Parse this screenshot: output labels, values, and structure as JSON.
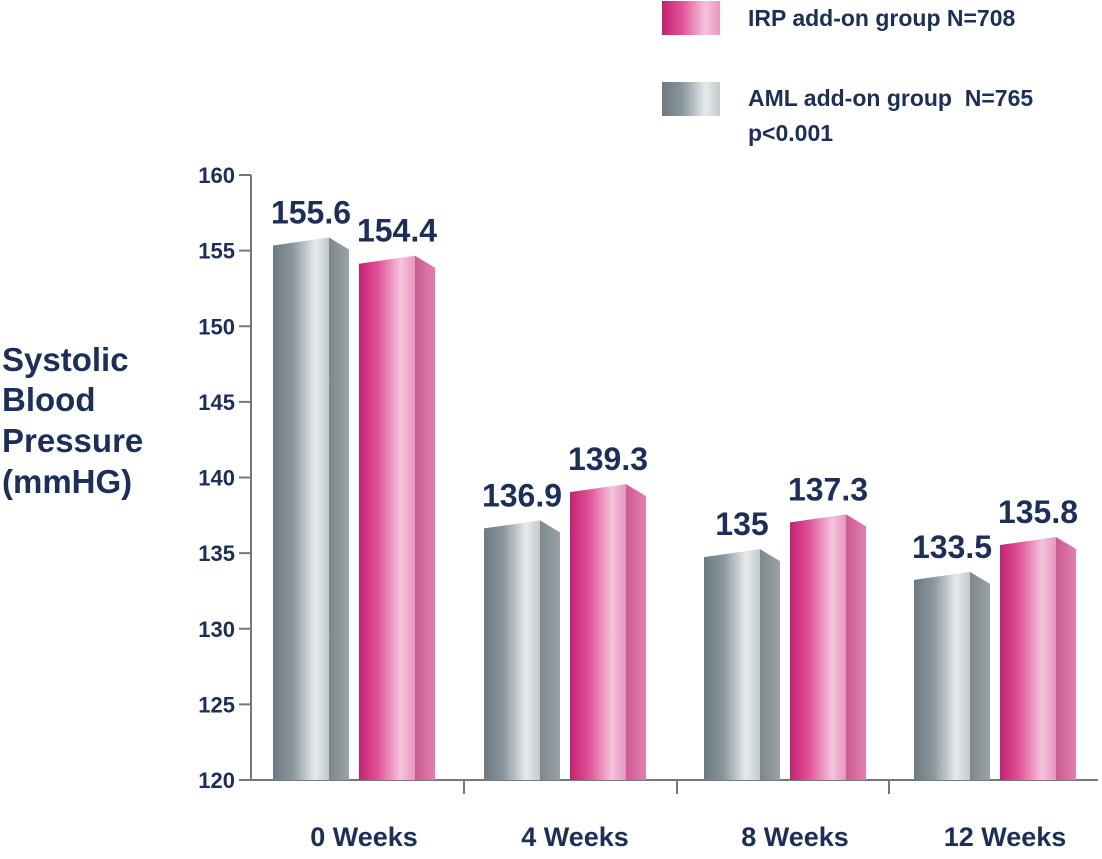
{
  "chart_data": {
    "type": "bar",
    "categories": [
      "0 Weeks",
      "4 Weeks",
      "8 Weeks",
      "12 Weeks"
    ],
    "series": [
      {
        "name": "AML add-on group  N=765",
        "values": [
          155.6,
          136.9,
          135,
          133.5
        ]
      },
      {
        "name": "IRP add-on group N=708",
        "values": [
          154.4,
          139.3,
          137.3,
          135.8
        ]
      }
    ],
    "data_labels": [
      [
        "155.6",
        "136.9",
        "135",
        "133.5"
      ],
      [
        "154.4",
        "139.3",
        "137.3",
        "135.8"
      ]
    ],
    "ylabel_lines": [
      "Systolic",
      "Blood",
      "Pressure",
      "(mmHG)"
    ],
    "ylim": [
      120,
      160
    ],
    "yticks": [
      120,
      125,
      130,
      135,
      140,
      145,
      150,
      155,
      160
    ],
    "legend_placement": "top-right",
    "legend_note": "p<0.001",
    "grid": false,
    "colors": {
      "AML": "#8a949a",
      "IRP": "#d63a88",
      "text": "#1c2f5a",
      "axis": "#777777"
    }
  }
}
